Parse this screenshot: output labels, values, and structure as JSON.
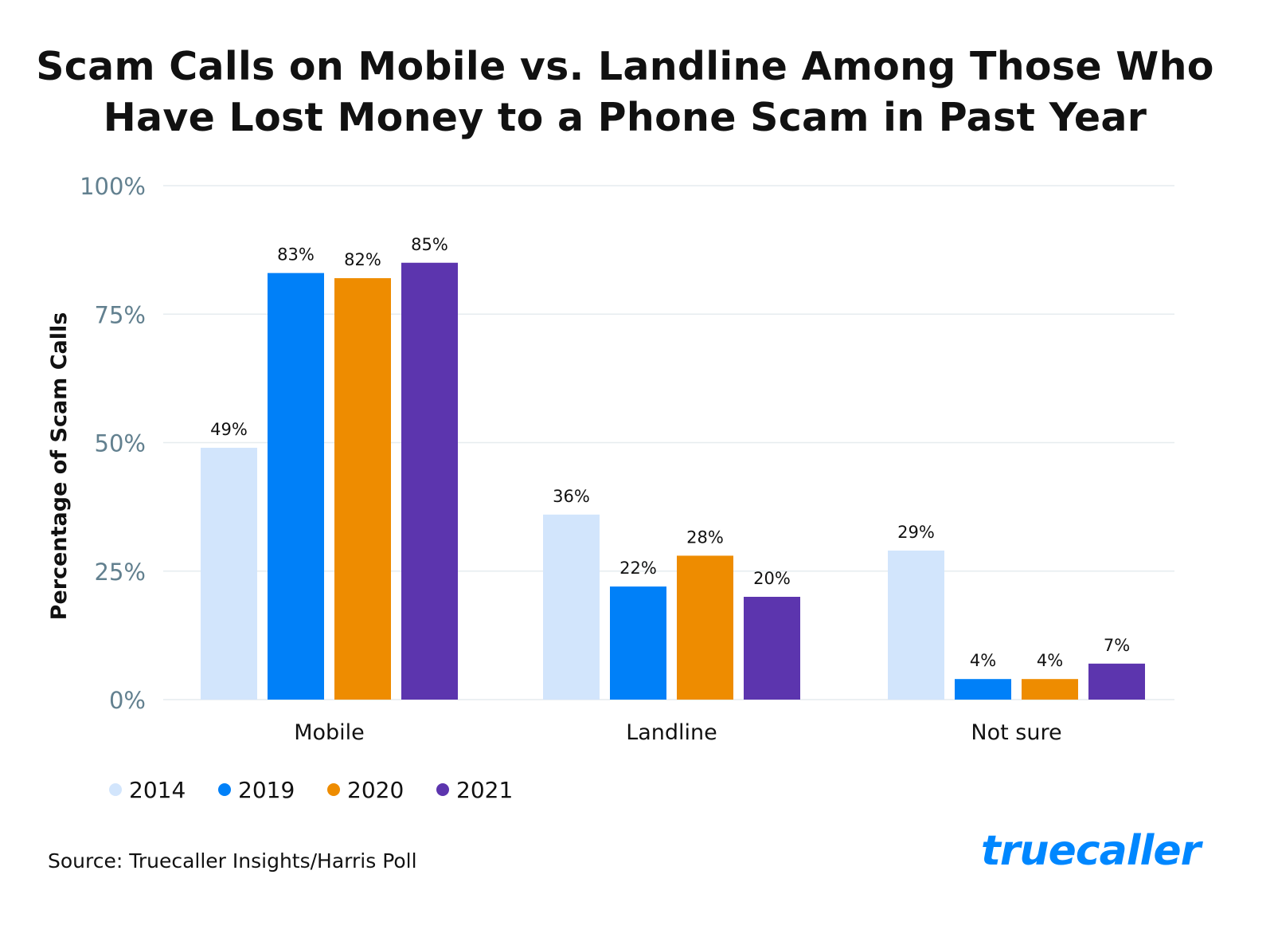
{
  "chart_data": {
    "type": "bar",
    "title": "Scam Calls on Mobile vs. Landline Among Those Who Have Lost Money to a Phone Scam in Past Year",
    "xlabel": "",
    "ylabel": "Percentage of Scam Calls",
    "ylim": [
      0,
      100
    ],
    "yticks": [
      "0%",
      "25%",
      "50%",
      "75%",
      "100%"
    ],
    "grid": true,
    "legend_position": "bottom-left",
    "categories": [
      "Mobile",
      "Landline",
      "Not sure"
    ],
    "series": [
      {
        "name": "2014",
        "color": "#d2e5fc",
        "values": [
          49,
          36,
          29
        ]
      },
      {
        "name": "2019",
        "color": "#0080f8",
        "values": [
          83,
          22,
          4
        ]
      },
      {
        "name": "2020",
        "color": "#ee8c00",
        "values": [
          82,
          28,
          4
        ]
      },
      {
        "name": "2021",
        "color": "#5c35ae",
        "values": [
          85,
          20,
          7
        ]
      }
    ]
  },
  "source": "Source: Truecaller Insights/Harris Poll",
  "logo": "truecaller",
  "brand_color": "#0087ff"
}
